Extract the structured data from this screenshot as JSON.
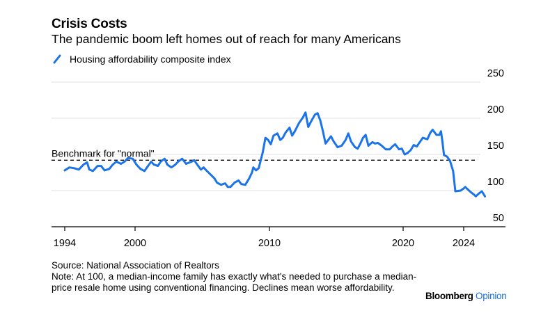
{
  "header": {
    "title": "Crisis Costs",
    "subtitle": "The pandemic boom left homes out of reach for many Americans"
  },
  "footer": {
    "source": "Source: National Association of Realtors",
    "note": "Note: At 100, a median-income family has exactly what's needed to purchase a median-price resale home using conventional financing. Declines mean worse affordability."
  },
  "brand": {
    "name": "Bloomberg",
    "suffix": "Opinion"
  },
  "colors": {
    "series": "#1a73e8",
    "grid": "#e6e6e6",
    "axis": "#000000",
    "brand_accent": "#1a6fe0"
  },
  "chart_data": {
    "type": "line",
    "title": "Crisis Costs",
    "subtitle": "The pandemic boom left homes out of reach for many Americans",
    "xlabel": "",
    "ylabel": "",
    "x_ticks": [
      1994,
      2000,
      2010,
      2020,
      2024
    ],
    "y_ticks": [
      50,
      100,
      150,
      200,
      250
    ],
    "ylim": [
      50,
      250
    ],
    "xlim": [
      1994,
      2025.5
    ],
    "grid": true,
    "y_axis_side": "right",
    "legend": {
      "position": "top-left",
      "entries": [
        "Housing affordability composite index"
      ]
    },
    "annotations": [
      {
        "label": "Benchmark for \"normal\"",
        "y": 142,
        "style": "dashed"
      }
    ],
    "series": [
      {
        "name": "Housing affordability composite index",
        "points": [
          [
            1994.0,
            128
          ],
          [
            1994.4,
            132
          ],
          [
            1994.8,
            131
          ],
          [
            1995.2,
            129
          ],
          [
            1995.6,
            136
          ],
          [
            1995.9,
            139
          ],
          [
            1996.1,
            129
          ],
          [
            1996.4,
            127
          ],
          [
            1996.8,
            134
          ],
          [
            1997.1,
            134
          ],
          [
            1997.4,
            128
          ],
          [
            1997.8,
            130
          ],
          [
            1998.1,
            136
          ],
          [
            1998.4,
            140
          ],
          [
            1998.8,
            137
          ],
          [
            1999.1,
            140
          ],
          [
            1999.4,
            145
          ],
          [
            1999.8,
            144
          ],
          [
            2000.1,
            136
          ],
          [
            2000.4,
            130
          ],
          [
            2000.7,
            127
          ],
          [
            2001.0,
            135
          ],
          [
            2001.2,
            140
          ],
          [
            2001.4,
            136
          ],
          [
            2001.7,
            134
          ],
          [
            2001.9,
            140
          ],
          [
            2002.2,
            144
          ],
          [
            2002.4,
            136
          ],
          [
            2002.7,
            132
          ],
          [
            2003.0,
            136
          ],
          [
            2003.2,
            140
          ],
          [
            2003.5,
            144
          ],
          [
            2003.8,
            137
          ],
          [
            2004.2,
            140
          ],
          [
            2004.4,
            142
          ],
          [
            2004.7,
            134
          ],
          [
            2004.9,
            129
          ],
          [
            2005.1,
            132
          ],
          [
            2005.3,
            128
          ],
          [
            2005.9,
            117
          ],
          [
            2006.1,
            111
          ],
          [
            2006.4,
            108
          ],
          [
            2006.7,
            110
          ],
          [
            2006.9,
            105
          ],
          [
            2007.1,
            105
          ],
          [
            2007.4,
            111
          ],
          [
            2007.7,
            114
          ],
          [
            2007.9,
            109
          ],
          [
            2008.2,
            108
          ],
          [
            2008.5,
            117
          ],
          [
            2008.7,
            125
          ],
          [
            2008.8,
            132
          ],
          [
            2009.0,
            128
          ],
          [
            2009.2,
            131
          ],
          [
            2009.5,
            153
          ],
          [
            2009.7,
            173
          ],
          [
            2009.9,
            170
          ],
          [
            2010.1,
            164
          ],
          [
            2010.3,
            176
          ],
          [
            2010.6,
            179
          ],
          [
            2010.8,
            170
          ],
          [
            2011.0,
            173
          ],
          [
            2011.2,
            180
          ],
          [
            2011.5,
            187
          ],
          [
            2011.7,
            176
          ],
          [
            2011.9,
            182
          ],
          [
            2012.2,
            193
          ],
          [
            2012.5,
            201
          ],
          [
            2012.7,
            208
          ],
          [
            2012.9,
            188
          ],
          [
            2013.1,
            195
          ],
          [
            2013.4,
            205
          ],
          [
            2013.6,
            207
          ],
          [
            2013.8,
            197
          ],
          [
            2014.0,
            182
          ],
          [
            2014.2,
            165
          ],
          [
            2014.4,
            170
          ],
          [
            2014.6,
            175
          ],
          [
            2014.8,
            168
          ],
          [
            2015.1,
            160
          ],
          [
            2015.4,
            162
          ],
          [
            2015.7,
            170
          ],
          [
            2015.9,
            179
          ],
          [
            2016.1,
            168
          ],
          [
            2016.4,
            160
          ],
          [
            2016.6,
            158
          ],
          [
            2016.8,
            165
          ],
          [
            2017.0,
            173
          ],
          [
            2017.2,
            177
          ],
          [
            2017.4,
            162
          ],
          [
            2017.7,
            167
          ],
          [
            2017.9,
            165
          ],
          [
            2018.1,
            166
          ],
          [
            2018.4,
            162
          ],
          [
            2018.7,
            157
          ],
          [
            2019.0,
            157
          ],
          [
            2019.2,
            161
          ],
          [
            2019.4,
            164
          ],
          [
            2019.7,
            157
          ],
          [
            2019.9,
            158
          ],
          [
            2020.1,
            150
          ],
          [
            2020.3,
            152
          ],
          [
            2020.5,
            156
          ],
          [
            2020.7,
            163
          ],
          [
            2020.9,
            161
          ],
          [
            2021.1,
            167
          ],
          [
            2021.3,
            173
          ],
          [
            2021.6,
            171
          ],
          [
            2021.8,
            180
          ],
          [
            2021.95,
            184
          ],
          [
            2022.2,
            177
          ],
          [
            2022.4,
            177
          ],
          [
            2022.5,
            182
          ],
          [
            2022.6,
            167
          ],
          [
            2022.7,
            149
          ],
          [
            2022.9,
            147
          ],
          [
            2023.1,
            141
          ],
          [
            2023.3,
            127
          ],
          [
            2023.45,
            99
          ],
          [
            2023.8,
            100
          ],
          [
            2024.0,
            103
          ],
          [
            2024.1,
            105
          ],
          [
            2024.4,
            99
          ],
          [
            2024.7,
            94
          ],
          [
            2024.8,
            92
          ],
          [
            2025.0,
            96
          ],
          [
            2025.2,
            99
          ],
          [
            2025.4,
            92
          ]
        ]
      }
    ]
  }
}
